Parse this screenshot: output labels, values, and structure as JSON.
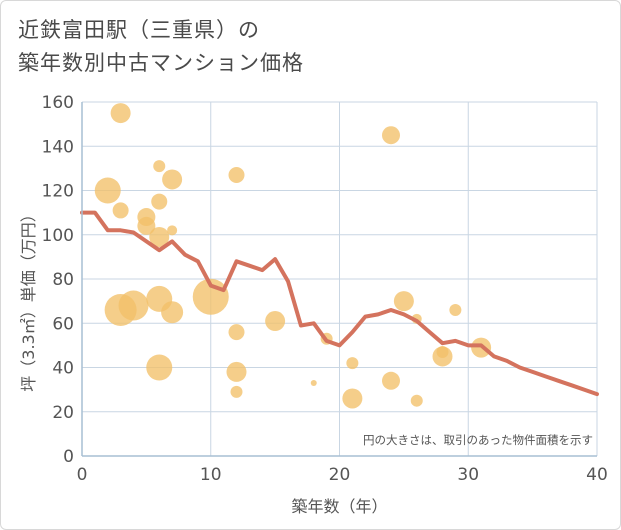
{
  "title_lines": [
    "近鉄富田駅（三重県）の",
    "築年数別中古マンション価格"
  ],
  "chart_data": {
    "type": "scatter",
    "xlabel": "築年数（年）",
    "ylabel": "坪（3.3㎡）単価（万円）",
    "xlim": [
      0,
      40
    ],
    "ylim": [
      0,
      160
    ],
    "x_ticks": [
      0,
      10,
      20,
      30,
      40
    ],
    "y_ticks": [
      0,
      20,
      40,
      60,
      80,
      100,
      120,
      140,
      160
    ],
    "grid": true,
    "note": "円の大きさは、取引のあった物件面積を示す",
    "colors": {
      "bubble": "#f2c069",
      "line": "#d4735e",
      "grid": "#c9d6e3",
      "axis": "#a7bfd4"
    },
    "bubbles": [
      {
        "x": 3,
        "y": 155,
        "size": 10
      },
      {
        "x": 24,
        "y": 145,
        "size": 9
      },
      {
        "x": 6,
        "y": 131,
        "size": 6
      },
      {
        "x": 12,
        "y": 127,
        "size": 8
      },
      {
        "x": 7,
        "y": 125,
        "size": 10
      },
      {
        "x": 2,
        "y": 120,
        "size": 13
      },
      {
        "x": 6,
        "y": 115,
        "size": 8
      },
      {
        "x": 3,
        "y": 111,
        "size": 8
      },
      {
        "x": 5,
        "y": 108,
        "size": 9
      },
      {
        "x": 5,
        "y": 104,
        "size": 9
      },
      {
        "x": 7,
        "y": 102,
        "size": 5
      },
      {
        "x": 6,
        "y": 99,
        "size": 10
      },
      {
        "x": 10,
        "y": 72,
        "size": 18
      },
      {
        "x": 6,
        "y": 71,
        "size": 13
      },
      {
        "x": 4,
        "y": 68,
        "size": 15
      },
      {
        "x": 3,
        "y": 66,
        "size": 16
      },
      {
        "x": 25,
        "y": 70,
        "size": 10
      },
      {
        "x": 7,
        "y": 65,
        "size": 11
      },
      {
        "x": 15,
        "y": 61,
        "size": 10
      },
      {
        "x": 26,
        "y": 62,
        "size": 5
      },
      {
        "x": 12,
        "y": 56,
        "size": 8
      },
      {
        "x": 29,
        "y": 66,
        "size": 6
      },
      {
        "x": 19,
        "y": 53,
        "size": 6
      },
      {
        "x": 31,
        "y": 49,
        "size": 10
      },
      {
        "x": 28,
        "y": 47,
        "size": 6
      },
      {
        "x": 28,
        "y": 45,
        "size": 10
      },
      {
        "x": 21,
        "y": 42,
        "size": 6
      },
      {
        "x": 6,
        "y": 40,
        "size": 13
      },
      {
        "x": 12,
        "y": 38,
        "size": 10
      },
      {
        "x": 24,
        "y": 34,
        "size": 9
      },
      {
        "x": 18,
        "y": 33,
        "size": 3
      },
      {
        "x": 12,
        "y": 29,
        "size": 6
      },
      {
        "x": 21,
        "y": 26,
        "size": 10
      },
      {
        "x": 26,
        "y": 25,
        "size": 6
      }
    ],
    "trend": {
      "x": [
        0,
        1,
        2,
        3,
        4,
        5,
        6,
        7,
        8,
        9,
        10,
        11,
        12,
        13,
        14,
        15,
        16,
        17,
        18,
        19,
        20,
        21,
        22,
        23,
        24,
        25,
        26,
        27,
        28,
        29,
        30,
        31,
        32,
        33,
        34,
        35,
        36,
        37,
        38,
        39,
        40
      ],
      "y": [
        110,
        110,
        102,
        102,
        101,
        97,
        93,
        97,
        91,
        88,
        77,
        75,
        88,
        86,
        84,
        89,
        79,
        59,
        60,
        52,
        50,
        56,
        63,
        64,
        66,
        64,
        61,
        56,
        51,
        52,
        50,
        50,
        45,
        43,
        40,
        38,
        36,
        34,
        32,
        30,
        28
      ]
    }
  }
}
